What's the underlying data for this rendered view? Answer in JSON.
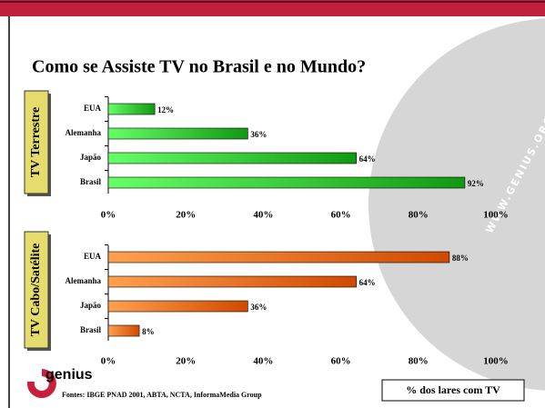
{
  "title": "Como se Assiste TV no Brasil e no Mundo?",
  "watermark": "WWW.GENIUS.ORG.BR",
  "logo": "genius",
  "source": "Fontes: IBGE PNAD 2001, ABTA, NCTA, InformaMedia Group",
  "legend_box": "% dos lares com TV",
  "chart_data": [
    {
      "type": "bar",
      "orientation": "horizontal",
      "panel_label": "TV Terrestre",
      "categories": [
        "EUA",
        "Alemanha",
        "Japão",
        "Brasil"
      ],
      "values": [
        12,
        36,
        64,
        92
      ],
      "value_labels": [
        "12%",
        "36%",
        "64%",
        "92%"
      ],
      "color": "#22cc22",
      "xlim": [
        0,
        100
      ],
      "xticks": [
        {
          "value": 0,
          "label": "0%"
        },
        {
          "value": 20,
          "label": "20%"
        },
        {
          "value": 40,
          "label": "40%"
        },
        {
          "value": 60,
          "label": "60%"
        },
        {
          "value": 80,
          "label": "80%"
        },
        {
          "value": 100,
          "label": "100%"
        }
      ]
    },
    {
      "type": "bar",
      "orientation": "horizontal",
      "panel_label": "TV Cabo/Satélite",
      "categories": [
        "EUA",
        "Alemanha",
        "Japão",
        "Brasil"
      ],
      "values": [
        88,
        64,
        36,
        8
      ],
      "value_labels": [
        "88%",
        "64%",
        "36%",
        "8%"
      ],
      "color": "#ff6a00",
      "xlim": [
        0,
        100
      ],
      "xticks": [
        {
          "value": 0,
          "label": "0%"
        },
        {
          "value": 20,
          "label": "20%"
        },
        {
          "value": 40,
          "label": "40%"
        },
        {
          "value": 60,
          "label": "60%"
        },
        {
          "value": 80,
          "label": "80%"
        },
        {
          "value": 100,
          "label": "100%"
        }
      ]
    }
  ]
}
